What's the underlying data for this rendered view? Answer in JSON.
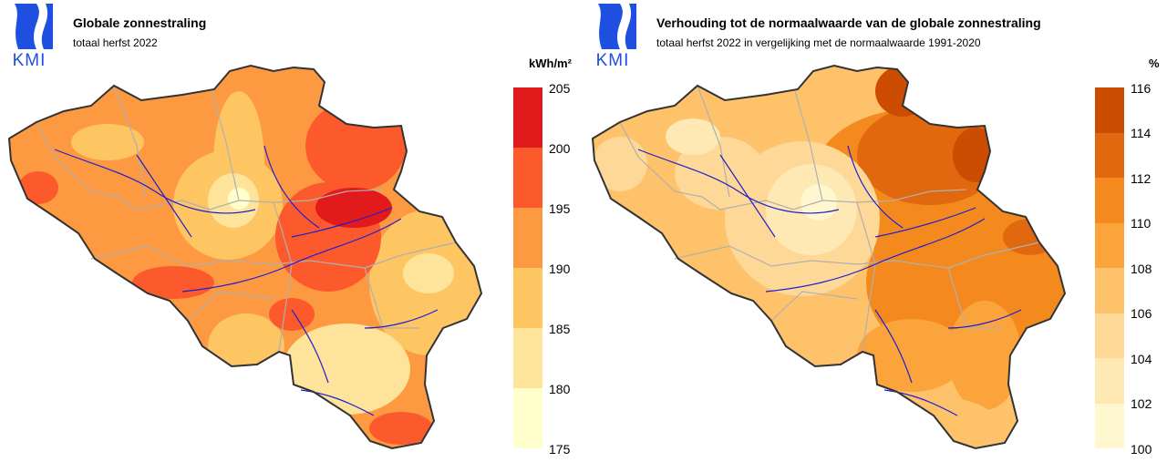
{
  "left": {
    "logo": "KMI",
    "title": "Globale zonnestraling",
    "subtitle": "totaal herfst 2022",
    "unit": "kWh/m²",
    "ticks": [
      "205",
      "200",
      "195",
      "190",
      "185",
      "180",
      "175"
    ],
    "colors": [
      "#e31a1c",
      "#fc5a2c",
      "#fd9a41",
      "#fec563",
      "#fee39a",
      "#ffffcc"
    ]
  },
  "right": {
    "logo": "KMI",
    "title": "Verhouding tot de normaalwaarde van de globale zonnestraling",
    "subtitle": "totaal herfst 2022 in vergelijking met de normaalwaarde 1991-2020",
    "unit": "%",
    "ticks": [
      "116",
      "114",
      "112",
      "110",
      "108",
      "106",
      "104",
      "102",
      "100"
    ],
    "colors": [
      "#cc4c02",
      "#e2680f",
      "#f4891e",
      "#fba43c",
      "#fec26a",
      "#fed896",
      "#fee8b4",
      "#fff7cf"
    ]
  },
  "icons": {
    "logo": "kmi-logo-icon"
  }
}
